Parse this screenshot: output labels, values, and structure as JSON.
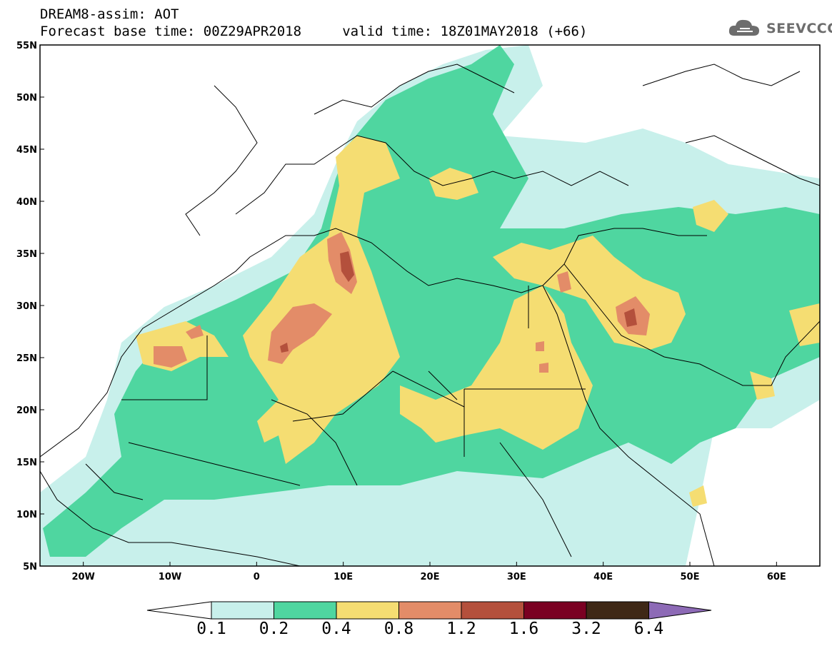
{
  "header": {
    "title_line1": "DREAM8-assim: AOT",
    "title_line2": "Forecast base time: 00Z29APR2018     valid time: 18Z01MAY2018 (+66)",
    "logo_text": "SEEVCCC"
  },
  "map": {
    "lon_range": [
      -25,
      65
    ],
    "lat_range": [
      5,
      55
    ],
    "x_ticks": [
      {
        "lon": -20,
        "label": "20W"
      },
      {
        "lon": -10,
        "label": "10W"
      },
      {
        "lon": 0,
        "label": "0"
      },
      {
        "lon": 10,
        "label": "10E"
      },
      {
        "lon": 20,
        "label": "20E"
      },
      {
        "lon": 30,
        "label": "30E"
      },
      {
        "lon": 40,
        "label": "40E"
      },
      {
        "lon": 50,
        "label": "50E"
      },
      {
        "lon": 60,
        "label": "60E"
      }
    ],
    "y_ticks": [
      {
        "lat": 55,
        "label": "55N"
      },
      {
        "lat": 50,
        "label": "50N"
      },
      {
        "lat": 45,
        "label": "45N"
      },
      {
        "lat": 40,
        "label": "40N"
      },
      {
        "lat": 35,
        "label": "35N"
      },
      {
        "lat": 30,
        "label": "30N"
      },
      {
        "lat": 25,
        "label": "25N"
      },
      {
        "lat": 20,
        "label": "20N"
      },
      {
        "lat": 15,
        "label": "15N"
      },
      {
        "lat": 10,
        "label": "10N"
      },
      {
        "lat": 5,
        "label": "5N"
      }
    ],
    "colors": {
      "c1": "#c8f0eb",
      "c2": "#4fd6a0",
      "c3": "#f5dd72",
      "c4": "#e38c68",
      "c5": "#b4503c",
      "c6": "#7a0022",
      "c7": "#3f2816",
      "c8": "#8d6ab6"
    }
  },
  "colorbar": {
    "labels": [
      "0.1",
      "0.2",
      "0.4",
      "0.8",
      "1.2",
      "1.6",
      "3.2",
      "6.4"
    ],
    "colors": [
      "#c8f0eb",
      "#4fd6a0",
      "#f5dd72",
      "#e38c68",
      "#b4503c",
      "#7a0022",
      "#3f2816"
    ],
    "end_left": "#ffffff",
    "end_right": "#8d6ab6"
  }
}
